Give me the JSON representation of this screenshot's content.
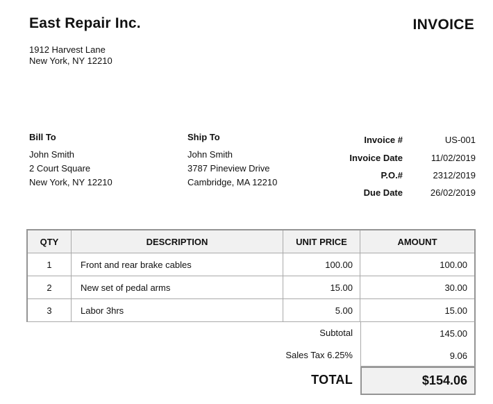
{
  "company": {
    "name": "East Repair Inc.",
    "address_line1": "1912 Harvest Lane",
    "address_line2": "New York, NY 12210"
  },
  "document_title": "INVOICE",
  "bill_to": {
    "label": "Bill To",
    "name": "John Smith",
    "address_line1": "2 Court Square",
    "address_line2": "New York, NY 12210"
  },
  "ship_to": {
    "label": "Ship To",
    "name": "John Smith",
    "address_line1": "3787 Pineview Drive",
    "address_line2": "Cambridge, MA 12210"
  },
  "meta": {
    "rows": [
      {
        "label": "Invoice #",
        "value": "US-001"
      },
      {
        "label": "Invoice Date",
        "value": "11/02/2019"
      },
      {
        "label": "P.O.#",
        "value": "2312/2019"
      },
      {
        "label": "Due Date",
        "value": "26/02/2019"
      }
    ]
  },
  "items_table": {
    "headers": {
      "qty": "QTY",
      "description": "DESCRIPTION",
      "unit_price": "UNIT PRICE",
      "amount": "AMOUNT"
    },
    "rows": [
      {
        "qty": "1",
        "description": "Front and rear brake cables",
        "unit_price": "100.00",
        "amount": "100.00"
      },
      {
        "qty": "2",
        "description": "New set of pedal arms",
        "unit_price": "15.00",
        "amount": "30.00"
      },
      {
        "qty": "3",
        "description": "Labor 3hrs",
        "unit_price": "5.00",
        "amount": "15.00"
      }
    ]
  },
  "summary": {
    "subtotal_label": "Subtotal",
    "subtotal_value": "145.00",
    "tax_label": "Sales Tax 6.25%",
    "tax_value": "9.06",
    "total_label": "TOTAL",
    "total_value": "$154.06"
  },
  "colors": {
    "border_inner": "#a9a9a9",
    "border_outer": "#949494",
    "header_row_bg": "#f1f1f1",
    "total_box_bg": "#f1f1f1",
    "text": "#111111",
    "page_bg": "#ffffff"
  }
}
